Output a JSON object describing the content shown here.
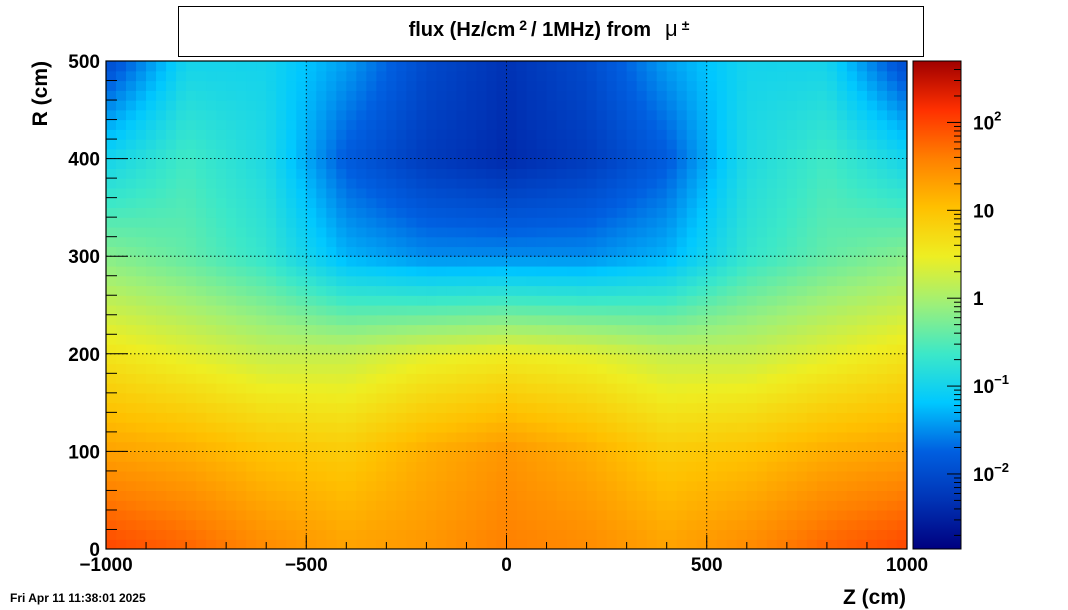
{
  "title": {
    "main": "flux (Hz/cm",
    "exp": "2",
    "rest": "/ 1MHz) from",
    "particle": "μ",
    "particle_sup": "±"
  },
  "timestamp": "Fri Apr 11 11:38:01 2025",
  "chart_data": {
    "type": "heatmap",
    "xlabel": "Z (cm)",
    "ylabel": "R (cm)",
    "xlim": [
      -1000,
      1000
    ],
    "ylim": [
      0,
      500
    ],
    "x_ticks": [
      -1000,
      -500,
      0,
      500,
      1000
    ],
    "x_tick_labels": [
      "−1000",
      "−500",
      "0",
      "500",
      "1000"
    ],
    "y_ticks": [
      0,
      100,
      200,
      300,
      400,
      500
    ],
    "y_tick_labels": [
      "0",
      "100",
      "200",
      "300",
      "400",
      "500"
    ],
    "grid": true,
    "colorbar": {
      "scale": "log",
      "range": [
        0.0014,
        500
      ],
      "ticks": [
        {
          "value": 0.01,
          "base": "10",
          "exp": "−2"
        },
        {
          "value": 0.1,
          "base": "10",
          "exp": "−1"
        },
        {
          "value": 1,
          "base": "1",
          "exp": ""
        },
        {
          "value": 10,
          "base": "10",
          "exp": ""
        },
        {
          "value": 100,
          "base": "10",
          "exp": "2"
        }
      ]
    },
    "palette": [
      "#00007f",
      "#0033b5",
      "#005fe0",
      "#00c8ff",
      "#3ce8c8",
      "#9cf07a",
      "#eeee22",
      "#ffc000",
      "#ff8000",
      "#ff3000",
      "#a00000"
    ],
    "series": [
      {
        "name": "flux",
        "approx_log10_grid": [
          [
            2.0,
            1.8,
            1.5,
            1.3,
            1.4,
            1.6,
            1.5,
            1.3,
            1.5,
            1.8,
            2.0
          ],
          [
            1.3,
            1.2,
            1.0,
            0.9,
            1.2,
            1.4,
            1.2,
            0.9,
            1.0,
            1.2,
            1.3
          ],
          [
            0.6,
            0.4,
            0.2,
            0.2,
            0.4,
            0.5,
            0.4,
            0.2,
            0.2,
            0.4,
            0.6
          ],
          [
            -0.2,
            -0.4,
            -0.7,
            -1.3,
            -1.5,
            -1.5,
            -1.5,
            -1.3,
            -0.7,
            -0.4,
            -0.2
          ],
          [
            -1.0,
            -0.6,
            -0.9,
            -1.8,
            -2.2,
            -2.4,
            -2.2,
            -1.8,
            -0.9,
            -0.6,
            -1.0
          ],
          [
            -2.0,
            -1.0,
            -1.0,
            -1.4,
            -2.0,
            -2.3,
            -2.0,
            -1.4,
            -1.0,
            -1.0,
            -2.0
          ]
        ]
      }
    ]
  }
}
